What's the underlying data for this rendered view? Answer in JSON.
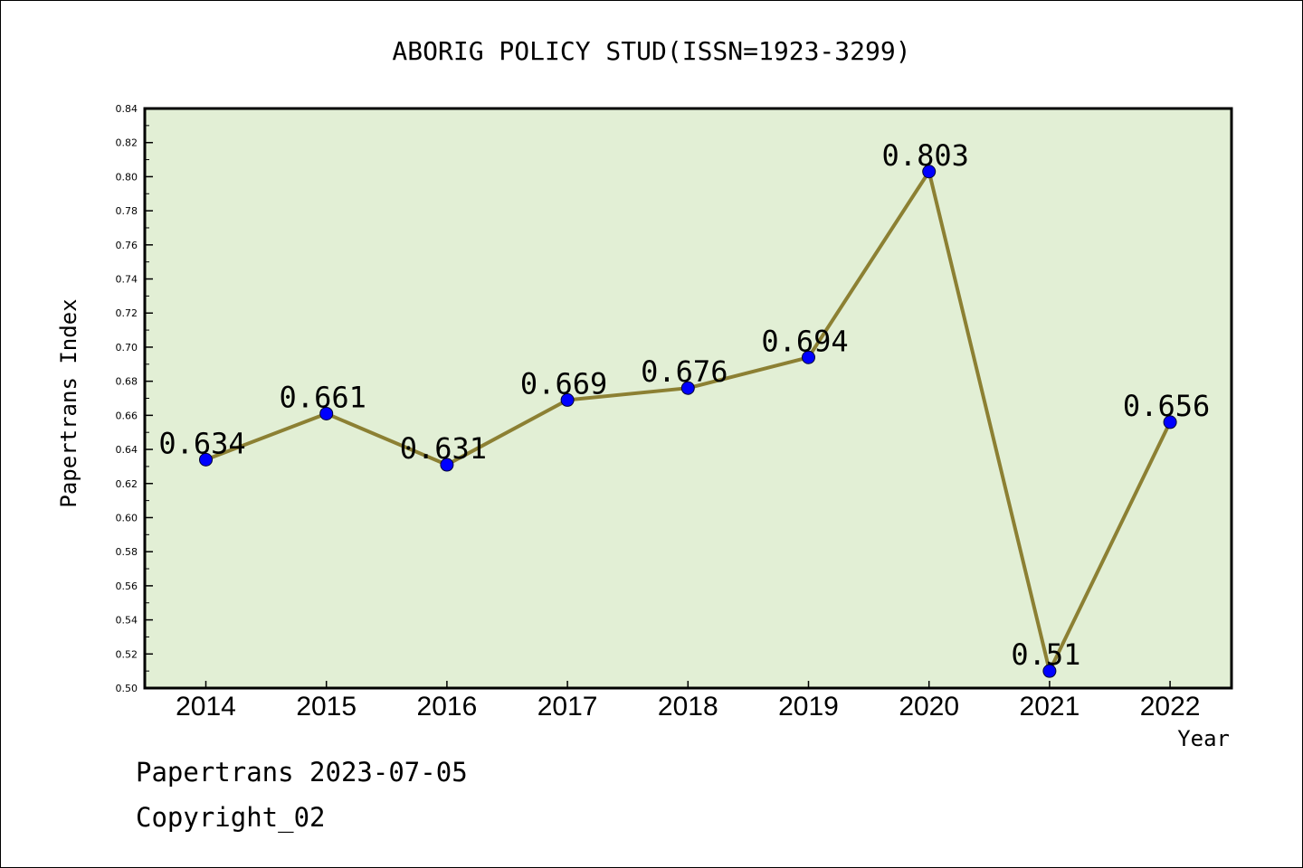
{
  "chart_data": {
    "type": "line",
    "title": "ABORIG POLICY STUD(ISSN=1923-3299)",
    "xlabel": "Year",
    "ylabel": "Papertrans Index",
    "categories": [
      "2014",
      "2015",
      "2016",
      "2017",
      "2018",
      "2019",
      "2020",
      "2021",
      "2022"
    ],
    "values": [
      0.634,
      0.661,
      0.631,
      0.669,
      0.676,
      0.694,
      0.803,
      0.51,
      0.656
    ],
    "data_labels": [
      "0.634",
      "0.661",
      "0.631",
      "0.669",
      "0.676",
      "0.694",
      "0.803",
      "0.51",
      "0.656"
    ],
    "ylim": [
      0.5,
      0.84
    ],
    "yticks": [
      "0.50",
      "0.52",
      "0.54",
      "0.56",
      "0.58",
      "0.60",
      "0.62",
      "0.64",
      "0.66",
      "0.68",
      "0.70",
      "0.72",
      "0.74",
      "0.76",
      "0.78",
      "0.80",
      "0.82",
      "0.84"
    ],
    "grid": false,
    "colors": {
      "plot_background": "#e2efd5",
      "line": "#8c8033",
      "marker": "#0000ff"
    }
  },
  "footer": {
    "line1": "Papertrans 2023-07-05",
    "line2": "Copyright_02"
  }
}
